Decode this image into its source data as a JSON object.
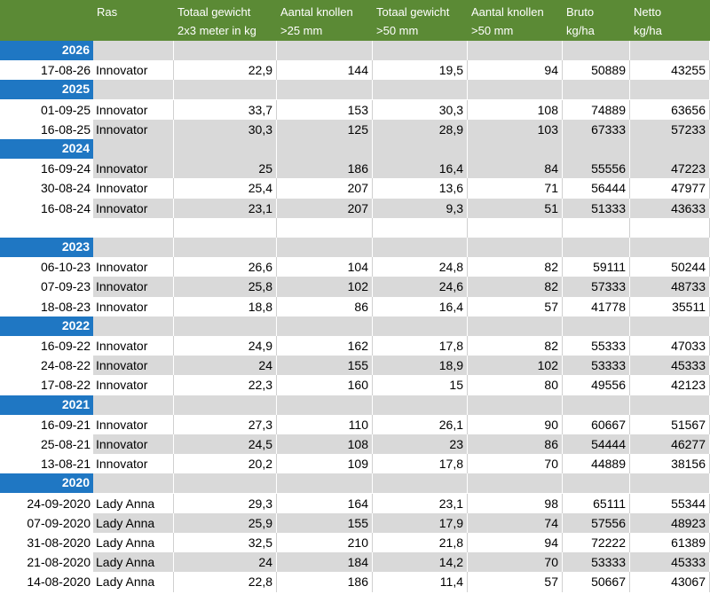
{
  "headers": [
    {
      "line1": "",
      "line2": ""
    },
    {
      "line1": "Ras",
      "line2": ""
    },
    {
      "line1": "Totaal gewicht",
      "line2": "2x3 meter in kg"
    },
    {
      "line1": "Aantal knollen",
      "line2": ">25 mm"
    },
    {
      "line1": "Totaal gewicht",
      "line2": ">50 mm"
    },
    {
      "line1": "Aantal knollen",
      "line2": ">50 mm"
    },
    {
      "line1": "Bruto",
      "line2": "kg/ha"
    },
    {
      "line1": "Netto",
      "line2": "kg/ha"
    }
  ],
  "rows": [
    {
      "type": "year",
      "label": "2026"
    },
    {
      "type": "data",
      "shade": "white",
      "cells": [
        "17-08-26",
        "Innovator",
        "22,9",
        "144",
        "19,5",
        "94",
        "50889",
        "43255"
      ]
    },
    {
      "type": "year",
      "label": "2025"
    },
    {
      "type": "data",
      "shade": "white",
      "cells": [
        "01-09-25",
        "Innovator",
        "33,7",
        "153",
        "30,3",
        "108",
        "74889",
        "63656"
      ]
    },
    {
      "type": "data",
      "shade": "gray",
      "cells": [
        "16-08-25",
        "Innovator",
        "30,3",
        "125",
        "28,9",
        "103",
        "67333",
        "57233"
      ]
    },
    {
      "type": "year",
      "label": "2024"
    },
    {
      "type": "data",
      "shade": "gray",
      "cells": [
        "16-09-24",
        "Innovator",
        "25",
        "186",
        "16,4",
        "84",
        "55556",
        "47223"
      ]
    },
    {
      "type": "data",
      "shade": "white",
      "cells": [
        "30-08-24",
        "Innovator",
        "25,4",
        "207",
        "13,6",
        "71",
        "56444",
        "47977"
      ]
    },
    {
      "type": "data",
      "shade": "gray",
      "cells": [
        "16-08-24",
        "Innovator",
        "23,1",
        "207",
        "9,3",
        "51",
        "51333",
        "43633"
      ]
    },
    {
      "type": "empty",
      "shade": "white"
    },
    {
      "type": "year",
      "label": "2023"
    },
    {
      "type": "data",
      "shade": "white",
      "cells": [
        "06-10-23",
        "Innovator",
        "26,6",
        "104",
        "24,8",
        "82",
        "59111",
        "50244"
      ]
    },
    {
      "type": "data",
      "shade": "gray",
      "cells": [
        "07-09-23",
        "Innovator",
        "25,8",
        "102",
        "24,6",
        "82",
        "57333",
        "48733"
      ]
    },
    {
      "type": "data",
      "shade": "white",
      "cells": [
        "18-08-23",
        "Innovator",
        "18,8",
        "86",
        "16,4",
        "57",
        "41778",
        "35511"
      ]
    },
    {
      "type": "year",
      "label": "2022"
    },
    {
      "type": "data",
      "shade": "white",
      "cells": [
        "16-09-22",
        "Innovator",
        "24,9",
        "162",
        "17,8",
        "82",
        "55333",
        "47033"
      ]
    },
    {
      "type": "data",
      "shade": "gray",
      "cells": [
        "24-08-22",
        "Innovator",
        "24",
        "155",
        "18,9",
        "102",
        "53333",
        "45333"
      ]
    },
    {
      "type": "data",
      "shade": "white",
      "cells": [
        "17-08-22",
        "Innovator",
        "22,3",
        "160",
        "15",
        "80",
        "49556",
        "42123"
      ]
    },
    {
      "type": "year",
      "label": "2021"
    },
    {
      "type": "data",
      "shade": "white",
      "cells": [
        "16-09-21",
        "Innovator",
        "27,3",
        "110",
        "26,1",
        "90",
        "60667",
        "51567"
      ]
    },
    {
      "type": "data",
      "shade": "gray",
      "cells": [
        "25-08-21",
        "Innovator",
        "24,5",
        "108",
        "23",
        "86",
        "54444",
        "46277"
      ]
    },
    {
      "type": "data",
      "shade": "white",
      "cells": [
        "13-08-21",
        "Innovator",
        "20,2",
        "109",
        "17,8",
        "70",
        "44889",
        "38156"
      ]
    },
    {
      "type": "year",
      "label": "2020"
    },
    {
      "type": "data",
      "shade": "white",
      "cells": [
        "24-09-2020",
        "Lady Anna",
        "29,3",
        "164",
        "23,1",
        "98",
        "65111",
        "55344"
      ]
    },
    {
      "type": "data",
      "shade": "gray",
      "cells": [
        "07-09-2020",
        "Lady Anna",
        "25,9",
        "155",
        "17,9",
        "74",
        "57556",
        "48923"
      ]
    },
    {
      "type": "data",
      "shade": "white",
      "cells": [
        "31-08-2020",
        "Lady Anna",
        "32,5",
        "210",
        "21,8",
        "94",
        "72222",
        "61389"
      ]
    },
    {
      "type": "data",
      "shade": "gray",
      "cells": [
        "21-08-2020",
        "Lady Anna",
        "24",
        "184",
        "14,2",
        "70",
        "53333",
        "45333"
      ]
    },
    {
      "type": "data",
      "shade": "white",
      "cells": [
        "14-08-2020",
        "Lady Anna",
        "22,8",
        "186",
        "11,4",
        "57",
        "50667",
        "43067"
      ]
    }
  ],
  "colors": {
    "header_green": "#5b8a35",
    "year_blue": "#1f77c3",
    "row_gray": "#d9d9d9"
  }
}
